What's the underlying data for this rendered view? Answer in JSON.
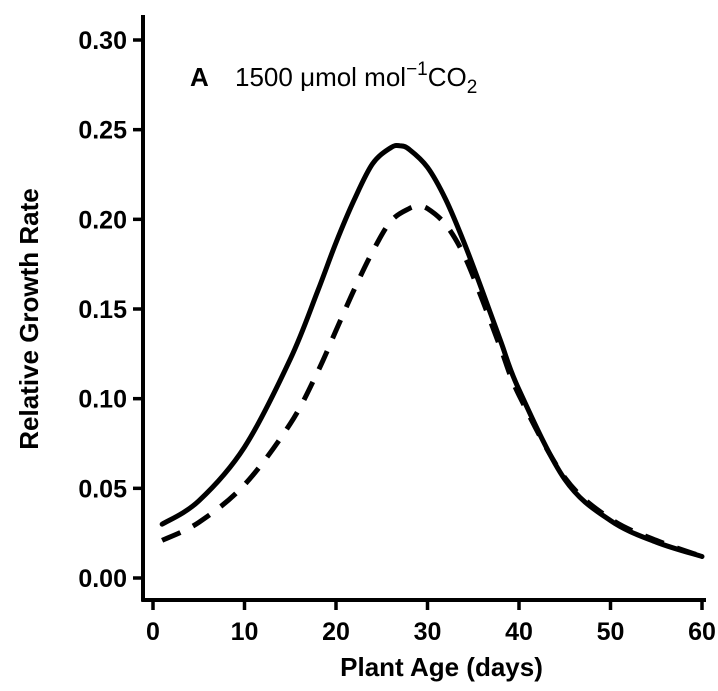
{
  "chart_data": {
    "type": "line",
    "title": "",
    "xlabel": "Plant Age (days)",
    "ylabel": "Relative Growth Rate",
    "xlim": [
      0,
      60
    ],
    "ylim": [
      0.0,
      0.3
    ],
    "x_ticks": [
      0,
      10,
      20,
      30,
      40,
      50,
      60
    ],
    "y_ticks": [
      0.0,
      0.05,
      0.1,
      0.15,
      0.2,
      0.25,
      0.3
    ],
    "x_tick_labels": [
      "0",
      "10",
      "20",
      "30",
      "40",
      "50",
      "60"
    ],
    "y_tick_labels": [
      "0.00",
      "0.05",
      "0.10",
      "0.15",
      "0.20",
      "0.25",
      "0.30"
    ],
    "grid": false,
    "legend": "none",
    "annotation": {
      "panel": "A",
      "value": "1500",
      "unit_mu": "μ",
      "unit_mol": "mol mol",
      "superscript": "−1",
      "gas": "CO",
      "subscript": "2"
    },
    "series": [
      {
        "style": "solid",
        "color": "#000000",
        "x": [
          1,
          5,
          10,
          15,
          18,
          20,
          22,
          24,
          26,
          27,
          28,
          30,
          32,
          34,
          36,
          38,
          40,
          45,
          50,
          55,
          60
        ],
        "y": [
          0.03,
          0.043,
          0.073,
          0.122,
          0.16,
          0.187,
          0.211,
          0.231,
          0.24,
          0.241,
          0.239,
          0.229,
          0.211,
          0.187,
          0.16,
          0.132,
          0.105,
          0.055,
          0.032,
          0.02,
          0.012
        ]
      },
      {
        "style": "dashed",
        "color": "#000000",
        "x": [
          1,
          5,
          10,
          15,
          18,
          20,
          22,
          24,
          26,
          28,
          29,
          30,
          32,
          34,
          36,
          38,
          40,
          45,
          50,
          55,
          60
        ],
        "y": [
          0.021,
          0.031,
          0.052,
          0.086,
          0.115,
          0.138,
          0.161,
          0.182,
          0.199,
          0.206,
          0.207,
          0.206,
          0.197,
          0.18,
          0.155,
          0.128,
          0.102,
          0.056,
          0.033,
          0.021,
          0.012
        ]
      }
    ]
  }
}
